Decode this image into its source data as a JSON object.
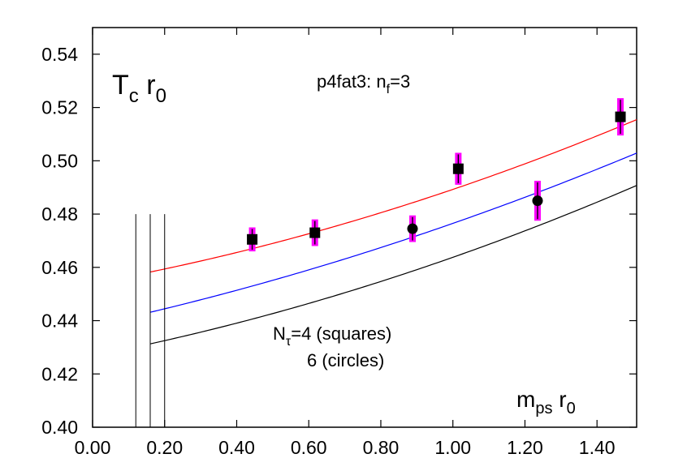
{
  "chart_data": {
    "type": "scatter",
    "title": "",
    "xlabel": "",
    "ylabel": "",
    "xlim": [
      0.0,
      1.51
    ],
    "ylim": [
      0.4,
      0.55
    ],
    "x_ticks": [
      0.0,
      0.2,
      0.4,
      0.6,
      0.8,
      1.0,
      1.2,
      1.4
    ],
    "x_tick_labels": [
      "0.00",
      "0.20",
      "0.40",
      "0.60",
      "0.80",
      "1.00",
      "1.20",
      "1.40"
    ],
    "y_ticks": [
      0.4,
      0.42,
      0.44,
      0.46,
      0.48,
      0.5,
      0.52,
      0.54
    ],
    "y_tick_labels": [
      "0.40",
      "0.42",
      "0.44",
      "0.46",
      "0.48",
      "0.50",
      "0.52",
      "0.54"
    ],
    "grid": false,
    "annotations": {
      "top_left": {
        "main": "T",
        "sub1": "c",
        "mid": " r",
        "sub2": "0"
      },
      "top_center": {
        "main": "p4fat3: n",
        "sub": "f",
        "tail": "=3"
      },
      "legend_line1": {
        "main": "N",
        "sub": "τ",
        "tail": "=4 (squares)"
      },
      "legend_line2": "6 (circles)",
      "bottom_right": {
        "main": "m",
        "sub1": "ps",
        "mid": " r",
        "sub2": "0"
      }
    },
    "series": [
      {
        "marker": "square",
        "color": "#000000",
        "error_color": "#ff00ff",
        "points": [
          {
            "x": 0.443,
            "y": 0.4705,
            "err": 0.0045,
            "xerr": 0.01
          },
          {
            "x": 0.617,
            "y": 0.473,
            "err": 0.005,
            "xerr": 0.01
          },
          {
            "x": 1.015,
            "y": 0.497,
            "err": 0.006,
            "xerr": 0.01
          },
          {
            "x": 1.465,
            "y": 0.5165,
            "err": 0.007,
            "xerr": 0.01
          }
        ]
      },
      {
        "marker": "circle",
        "color": "#000000",
        "error_color": "#ff00ff",
        "points": [
          {
            "x": 0.888,
            "y": 0.4745,
            "err": 0.005,
            "xerr": 0.0
          },
          {
            "x": 1.235,
            "y": 0.485,
            "err": 0.0075,
            "xerr": 0.0
          }
        ]
      }
    ],
    "fit_curves": [
      {
        "color": "#ff0000",
        "x_start": 0.16,
        "x_end": 1.51,
        "y0": 0.45406,
        "b": 0.0245,
        "c": 0.0107
      },
      {
        "color": "#0000ff",
        "x_start": 0.16,
        "x_end": 1.51,
        "y0": 0.43821,
        "b": 0.0294,
        "c": 0.0089
      },
      {
        "color": "#000000",
        "x_start": 0.16,
        "x_end": 1.51,
        "y0": 0.42678,
        "b": 0.0265,
        "c": 0.0105
      }
    ],
    "vertical_lines": [
      {
        "x": 0.12,
        "y_from": 0.4,
        "y_to": 0.48
      },
      {
        "x": 0.16,
        "y_from": 0.4,
        "y_to": 0.48
      },
      {
        "x": 0.2,
        "y_from": 0.4,
        "y_to": 0.48
      }
    ]
  }
}
